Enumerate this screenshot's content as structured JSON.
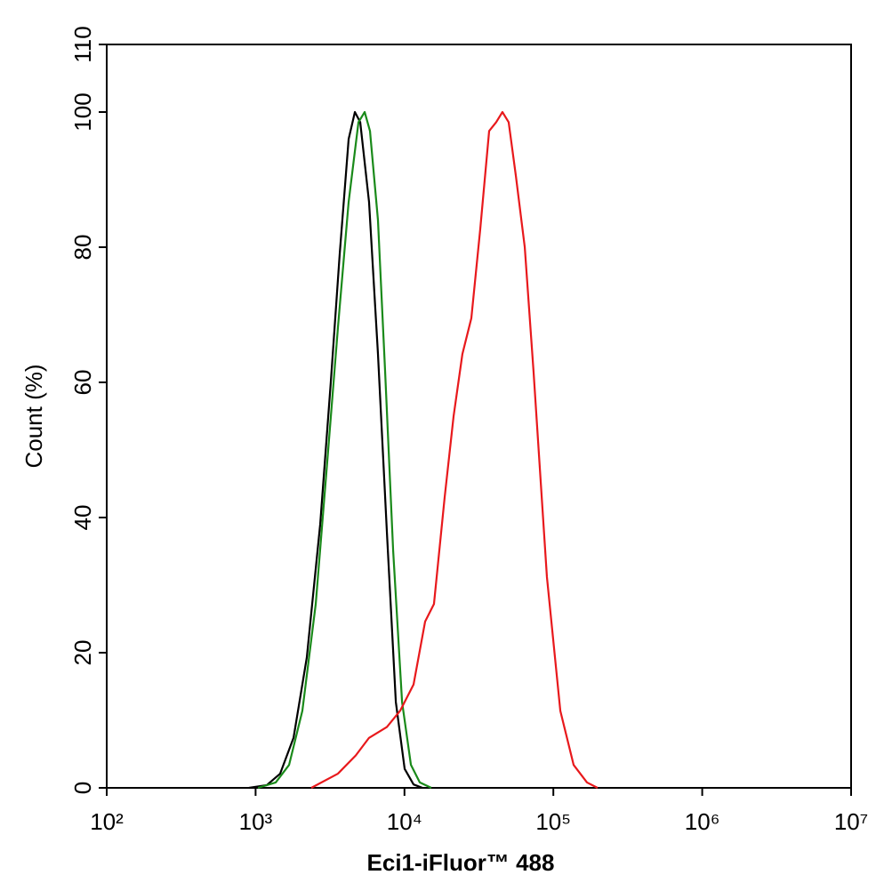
{
  "chart_data": {
    "type": "line",
    "x_label": "Eci1-iFluor™ 488",
    "y_label": "Count  (%)",
    "xscale": "log",
    "xlim": [
      100,
      10000000
    ],
    "xticks": [
      {
        "value": 100,
        "label": "10²"
      },
      {
        "value": 1000,
        "label": "10³"
      },
      {
        "value": 10000,
        "label": "10⁴"
      },
      {
        "value": 100000,
        "label": "10⁵"
      },
      {
        "value": 1000000,
        "label": "10⁶"
      },
      {
        "value": 10000000,
        "label": "10⁷"
      }
    ],
    "ylim": [
      0,
      110
    ],
    "yticks": [
      0,
      20,
      40,
      60,
      80,
      100,
      110
    ],
    "series": [
      {
        "color": "#000000",
        "x": [
          903,
          1189,
          1462,
          1798,
          2208,
          2716,
          3199,
          3673,
          4217,
          4645,
          5044,
          5781,
          6637,
          7621,
          8750,
          10030,
          11510,
          13210
        ],
        "values": [
          0,
          0.4,
          2.1,
          7.4,
          19.3,
          39,
          60,
          79,
          96,
          100,
          98.5,
          86.7,
          64.2,
          37.8,
          12.7,
          2.8,
          0.5,
          0
        ]
      },
      {
        "color": "#1a8a1a",
        "x": [
          1037,
          1365,
          1679,
          2061,
          2535,
          3030,
          3573,
          4217,
          4909,
          5404,
          5866,
          6637,
          7413,
          8394,
          9636,
          11050,
          12670,
          15140
        ],
        "values": [
          0,
          0.8,
          3.4,
          11.4,
          27.2,
          48.3,
          68.1,
          86.7,
          98.5,
          100,
          97.2,
          84,
          61.6,
          35.1,
          12.7,
          3.4,
          0.8,
          0
        ]
      },
      {
        "color": "#e8191c",
        "x": [
          2366,
          3573,
          4710,
          5781,
          7621,
          9350,
          11510,
          13760,
          15780,
          18620,
          21380,
          24500,
          28130,
          32290,
          37050,
          41300,
          45500,
          50100,
          55980,
          64270,
          73620,
          90540,
          111400,
          136800,
          168300,
          198200
        ],
        "values": [
          0,
          2.1,
          4.8,
          7.4,
          9,
          11.4,
          15.3,
          24.6,
          27.2,
          43,
          55,
          64.2,
          69.5,
          82.7,
          97.2,
          98.5,
          100,
          98.5,
          90.6,
          80,
          61.6,
          31.2,
          11.4,
          3.4,
          0.8,
          0
        ]
      }
    ]
  }
}
